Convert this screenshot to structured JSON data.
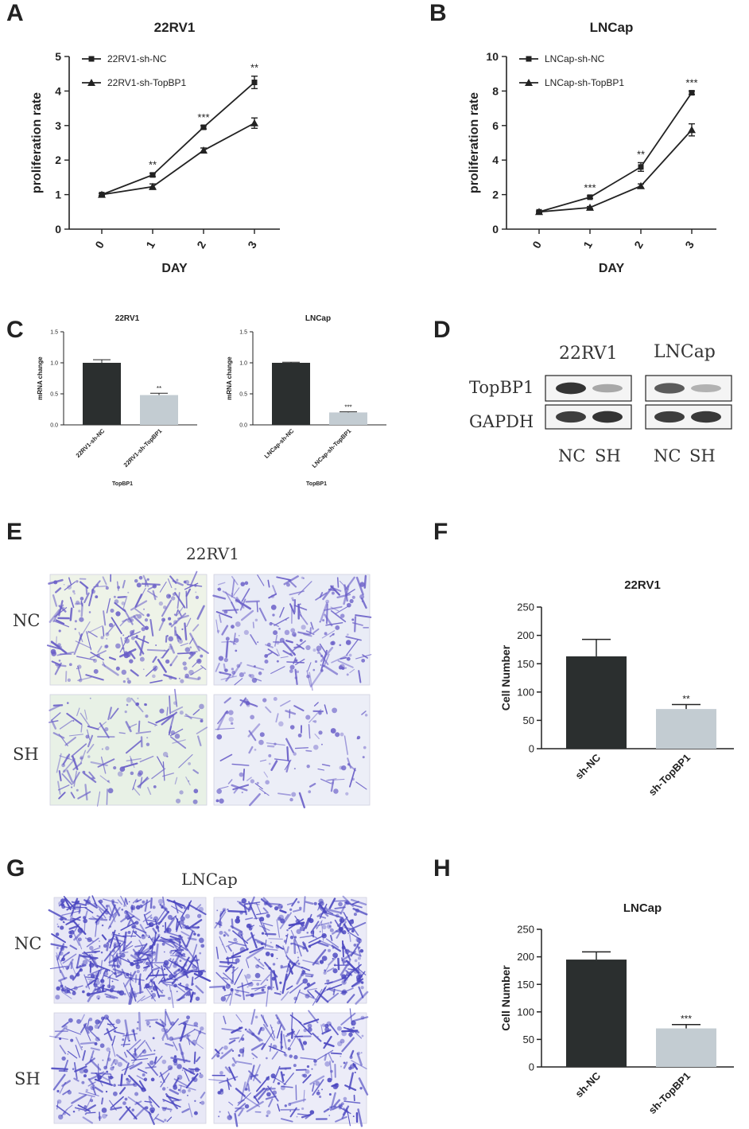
{
  "panels": {
    "A": {
      "letter": "A"
    },
    "B": {
      "letter": "B"
    },
    "C": {
      "letter": "C"
    },
    "D": {
      "letter": "D"
    },
    "E": {
      "letter": "E"
    },
    "F": {
      "letter": "F"
    },
    "G": {
      "letter": "G"
    },
    "H": {
      "letter": "H"
    }
  },
  "chart_data": [
    {
      "id": "A",
      "type": "line",
      "title": "22RV1",
      "xlabel": "DAY",
      "ylabel": "proliferation rate",
      "x": [
        0,
        1,
        2,
        3
      ],
      "xticks": [
        "0",
        "1",
        "2",
        "3"
      ],
      "ylim": [
        0,
        5
      ],
      "yticks": [
        "0",
        "1",
        "2",
        "3",
        "4",
        "5"
      ],
      "legend": "top-left",
      "series": [
        {
          "name": "22RV1-sh-NC",
          "marker": "square",
          "values": [
            1.0,
            1.57,
            2.95,
            4.25
          ],
          "errors": [
            0.03,
            0.05,
            0.05,
            0.18
          ]
        },
        {
          "name": "22RV1-sh-TopBP1",
          "marker": "triangle",
          "values": [
            1.0,
            1.23,
            2.28,
            3.07
          ],
          "errors": [
            0.03,
            0.08,
            0.07,
            0.15
          ]
        }
      ],
      "annotations": [
        {
          "x": 1,
          "y": 1.57,
          "text": "**"
        },
        {
          "x": 2,
          "y": 2.95,
          "text": "***"
        },
        {
          "x": 3,
          "y": 4.25,
          "text": "**"
        }
      ]
    },
    {
      "id": "B",
      "type": "line",
      "title": "LNCap",
      "xlabel": "DAY",
      "ylabel": "proliferation rate",
      "x": [
        0,
        1,
        2,
        3
      ],
      "xticks": [
        "0",
        "1",
        "2",
        "3"
      ],
      "ylim": [
        0,
        10
      ],
      "yticks": [
        "0",
        "2",
        "4",
        "6",
        "8",
        "10"
      ],
      "legend": "top-left",
      "series": [
        {
          "name": "LNCap-sh-NC",
          "marker": "square",
          "values": [
            1.0,
            1.85,
            3.6,
            7.9
          ],
          "errors": [
            0.05,
            0.07,
            0.25,
            0.1
          ]
        },
        {
          "name": "LNCap-sh-TopBP1",
          "marker": "triangle",
          "values": [
            1.0,
            1.25,
            2.5,
            5.75
          ],
          "errors": [
            0.05,
            0.06,
            0.12,
            0.35
          ]
        }
      ],
      "annotations": [
        {
          "x": 1,
          "y": 1.85,
          "text": "***"
        },
        {
          "x": 2,
          "y": 3.6,
          "text": "**"
        },
        {
          "x": 3,
          "y": 7.9,
          "text": "***"
        }
      ]
    },
    {
      "id": "C1",
      "type": "bar",
      "title": "22RV1",
      "xlabel": "TopBP1",
      "ylabel": "mRNA change",
      "categories": [
        "22RV1-sh-NC",
        "22RV1-sh-TopBP1"
      ],
      "values": [
        1.0,
        0.48
      ],
      "errors": [
        0.05,
        0.03
      ],
      "colors": [
        "#2b2f2f",
        "#c3ccd2"
      ],
      "ylim": [
        0,
        1.5
      ],
      "yticks": [
        "0.0",
        "0.5",
        "1.0",
        "1.5"
      ],
      "annotations": [
        {
          "index": 1,
          "text": "**"
        }
      ]
    },
    {
      "id": "C2",
      "type": "bar",
      "title": "LNCap",
      "xlabel": "TopBP1",
      "ylabel": "mRNA change",
      "categories": [
        "LNCap-sh-NC",
        "LNCap-sh-TopBP1"
      ],
      "values": [
        1.0,
        0.2
      ],
      "errors": [
        0.01,
        0.01
      ],
      "colors": [
        "#2b2f2f",
        "#c3ccd2"
      ],
      "ylim": [
        0,
        1.5
      ],
      "yticks": [
        "0.0",
        "0.5",
        "1.0",
        "1.5"
      ],
      "annotations": [
        {
          "index": 1,
          "text": "***"
        }
      ]
    },
    {
      "id": "F",
      "type": "bar",
      "title": "22RV1",
      "xlabel": "",
      "ylabel": "Cell Number",
      "categories": [
        "sh-NC",
        "sh-TopBP1"
      ],
      "values": [
        163,
        70
      ],
      "errors": [
        30,
        8
      ],
      "colors": [
        "#2b2f2f",
        "#c3ccd2"
      ],
      "ylim": [
        0,
        250
      ],
      "yticks": [
        "0",
        "50",
        "100",
        "150",
        "200",
        "250"
      ],
      "annotations": [
        {
          "index": 1,
          "text": "**"
        }
      ]
    },
    {
      "id": "H",
      "type": "bar",
      "title": "LNCap",
      "xlabel": "",
      "ylabel": "Cell Number",
      "categories": [
        "sh-NC",
        "sh-TopBP1"
      ],
      "values": [
        195,
        70
      ],
      "errors": [
        14,
        7
      ],
      "colors": [
        "#2b2f2f",
        "#c3ccd2"
      ],
      "ylim": [
        0,
        250
      ],
      "yticks": [
        "0",
        "50",
        "100",
        "150",
        "200",
        "250"
      ],
      "annotations": [
        {
          "index": 1,
          "text": "***"
        }
      ]
    }
  ],
  "western_blot": {
    "cell_lines": [
      "22RV1",
      "LNCap"
    ],
    "proteins": [
      "TopBP1",
      "GAPDH"
    ],
    "lanes": [
      "NC",
      "SH",
      "NC",
      "SH"
    ],
    "band_intensity": {
      "TopBP1": [
        0.95,
        0.35,
        0.75,
        0.3
      ],
      "GAPDH": [
        0.9,
        0.95,
        0.9,
        0.92
      ]
    }
  },
  "micrographs": {
    "E": {
      "title": "22RV1",
      "rows": [
        "NC",
        "SH"
      ],
      "stain_color": "#6a5fc8"
    },
    "G": {
      "title": "LNCap",
      "rows": [
        "NC",
        "SH"
      ],
      "stain_color": "#4a46c0"
    }
  }
}
